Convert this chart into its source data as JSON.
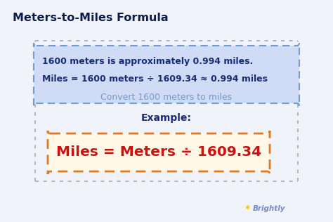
{
  "title": "Meters-to-Miles Formula",
  "title_color": "#0d1b4b",
  "title_fontsize": 11.5,
  "bg_color": "#f0f4fa",
  "formula_text": "Miles = Meters ÷ 1609.34",
  "formula_color": "#cc1111",
  "formula_box_fill": "#fff8e6",
  "formula_box_edge": "#e07820",
  "example_label": "Example:",
  "example_label_color": "#1a2a7a",
  "example_header": "Convert 1600 meters to miles",
  "example_header_color": "#7799cc",
  "example_line1": "Miles = 1600 meters ÷ 1609.34 ≈ 0.994 miles",
  "example_line2": "1600 meters is approximately 0.994 miles.",
  "example_text_color": "#1a2a7a",
  "example_box_fill": "#d0dcf5",
  "example_box_edge": "#7799cc",
  "outer_dash_color": "#aaaaaa",
  "brightly_color": "#7788cc",
  "brightly_star_color": "#f5c518"
}
